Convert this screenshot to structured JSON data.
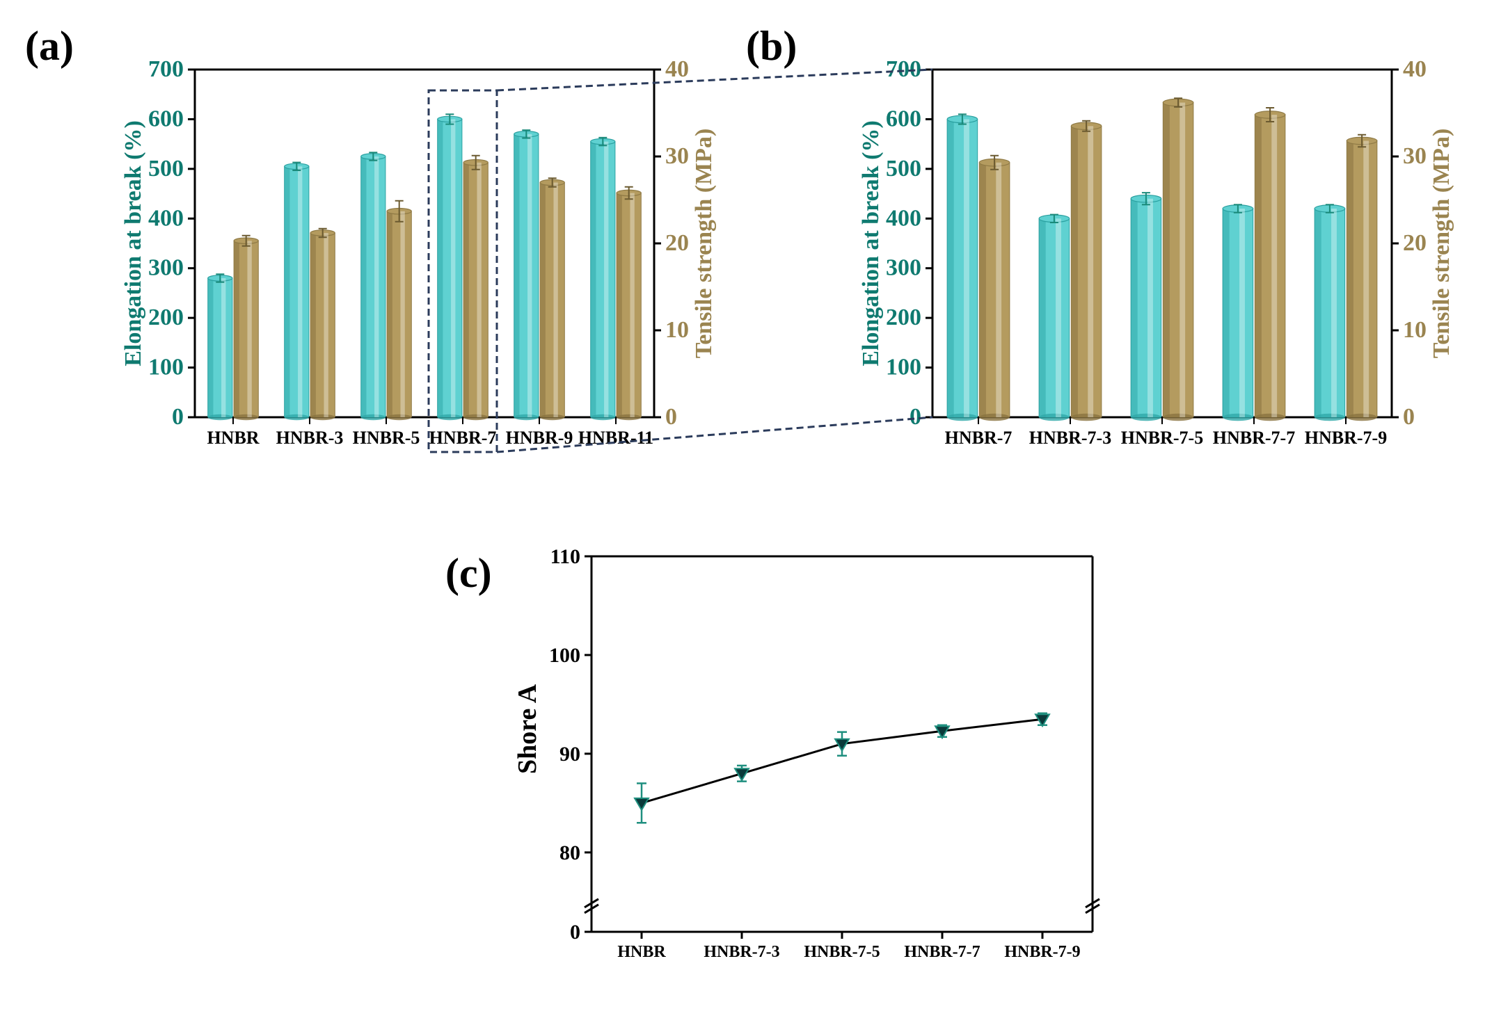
{
  "panelLabels": {
    "a": "(a)",
    "b": "(b)",
    "c": "(c)"
  },
  "colors": {
    "barCyan": "#5fd1d1",
    "barCyanDark": "#2fa9a9",
    "barTan": "#b49b5f",
    "barTanDark": "#8a7340",
    "errorCyan": "#1a8a7a",
    "errorTan": "#6b5a30",
    "axisLeft": "#0f7a70",
    "axisRight": "#9a8450",
    "black": "#000000",
    "highlight": "#2b3b5b",
    "markerFill": "#0a3a3a",
    "markerStroke": "#1f8f7f"
  },
  "chartA": {
    "yLeft": {
      "label": "Elongation at break (%)",
      "min": 0,
      "max": 700,
      "step": 100,
      "fontsize": 34,
      "labelFontsize": 34
    },
    "yRight": {
      "label": "Tensile strength (MPa)",
      "min": 0,
      "max": 40,
      "step": 10,
      "fontsize": 34,
      "labelFontsize": 34
    },
    "categories": [
      "HNBR",
      "HNBR-3",
      "HNBR-5",
      "HNBR-7",
      "HNBR-9",
      "HNBR-11"
    ],
    "barWidth": 0.32,
    "groupGap": 0.02,
    "elongation": {
      "values": [
        280,
        505,
        525,
        600,
        570,
        555
      ],
      "err": [
        8,
        8,
        8,
        10,
        8,
        8
      ]
    },
    "tensile": {
      "values": [
        20.3,
        21.2,
        23.7,
        29.3,
        27.0,
        25.8
      ],
      "err": [
        0.6,
        0.5,
        1.2,
        0.8,
        0.5,
        0.7
      ]
    },
    "highlightIndex": 3,
    "tickFontsize": 26
  },
  "chartB": {
    "yLeft": {
      "label": "Elongation at break (%)",
      "min": 0,
      "max": 700,
      "step": 100,
      "fontsize": 34,
      "labelFontsize": 34
    },
    "yRight": {
      "label": "Tensile strength (MPa)",
      "min": 0,
      "max": 40,
      "step": 10,
      "fontsize": 34,
      "labelFontsize": 34
    },
    "categories": [
      "HNBR-7",
      "HNBR-7-3",
      "HNBR-7-5",
      "HNBR-7-7",
      "HNBR-7-9"
    ],
    "barWidth": 0.33,
    "groupGap": 0.02,
    "elongation": {
      "values": [
        600,
        400,
        440,
        420,
        420
      ],
      "err": [
        10,
        8,
        12,
        8,
        8
      ]
    },
    "tensile": {
      "values": [
        29.3,
        33.5,
        36.2,
        34.8,
        31.8
      ],
      "err": [
        0.8,
        0.6,
        0.5,
        0.8,
        0.7
      ]
    },
    "tickFontsize": 26
  },
  "chartC": {
    "yLabel": "Shore A",
    "y": {
      "min": 0,
      "breakLow": 5,
      "breakHigh": 75,
      "max": 110,
      "ticks": [
        0,
        80,
        90,
        100,
        110
      ],
      "fontsize": 30,
      "labelFontsize": 38
    },
    "categories": [
      "HNBR",
      "HNBR-7-3",
      "HNBR-7-5",
      "HNBR-7-7",
      "HNBR-7-9"
    ],
    "values": [
      85,
      88,
      91,
      92.3,
      93.5
    ],
    "err": [
      2.0,
      0.8,
      1.2,
      0.6,
      0.6
    ],
    "tickFontsize": 24,
    "lineWidth": 3,
    "markerSize": 10
  }
}
